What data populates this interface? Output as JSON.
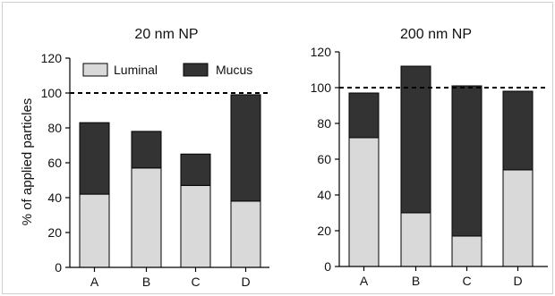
{
  "figure": {
    "border_color": "#d0d0d0"
  },
  "legend": {
    "position": "top-inside-left-panel",
    "items": [
      {
        "label": "Luminal",
        "color": "#d9d9d9"
      },
      {
        "label": "Mucus",
        "color": "#333333"
      }
    ]
  },
  "reference_line": {
    "value": 100,
    "style": "dashed",
    "color": "#000000"
  },
  "chart_data": [
    {
      "type": "bar",
      "stacked": true,
      "title": "20 nm NP",
      "ylabel": "% of applied particles",
      "xlabel": "",
      "ylim": [
        0,
        120
      ],
      "yticks": [
        0,
        20,
        40,
        60,
        80,
        100,
        120
      ],
      "categories": [
        "A",
        "B",
        "C",
        "D"
      ],
      "series": [
        {
          "name": "Luminal",
          "values": [
            42,
            57,
            47,
            38
          ],
          "color": "#d9d9d9"
        },
        {
          "name": "Mucus",
          "values": [
            41,
            21,
            18,
            61
          ],
          "color": "#333333"
        }
      ],
      "grid": false
    },
    {
      "type": "bar",
      "stacked": true,
      "title": "200 nm NP",
      "ylabel": "",
      "xlabel": "",
      "ylim": [
        0,
        120
      ],
      "yticks": [
        0,
        20,
        40,
        60,
        80,
        100,
        120
      ],
      "categories": [
        "A",
        "B",
        "C",
        "D"
      ],
      "series": [
        {
          "name": "Luminal",
          "values": [
            72,
            30,
            17,
            54
          ],
          "color": "#d9d9d9"
        },
        {
          "name": "Mucus",
          "values": [
            25,
            82,
            84,
            44
          ],
          "color": "#333333"
        }
      ],
      "grid": false
    }
  ]
}
